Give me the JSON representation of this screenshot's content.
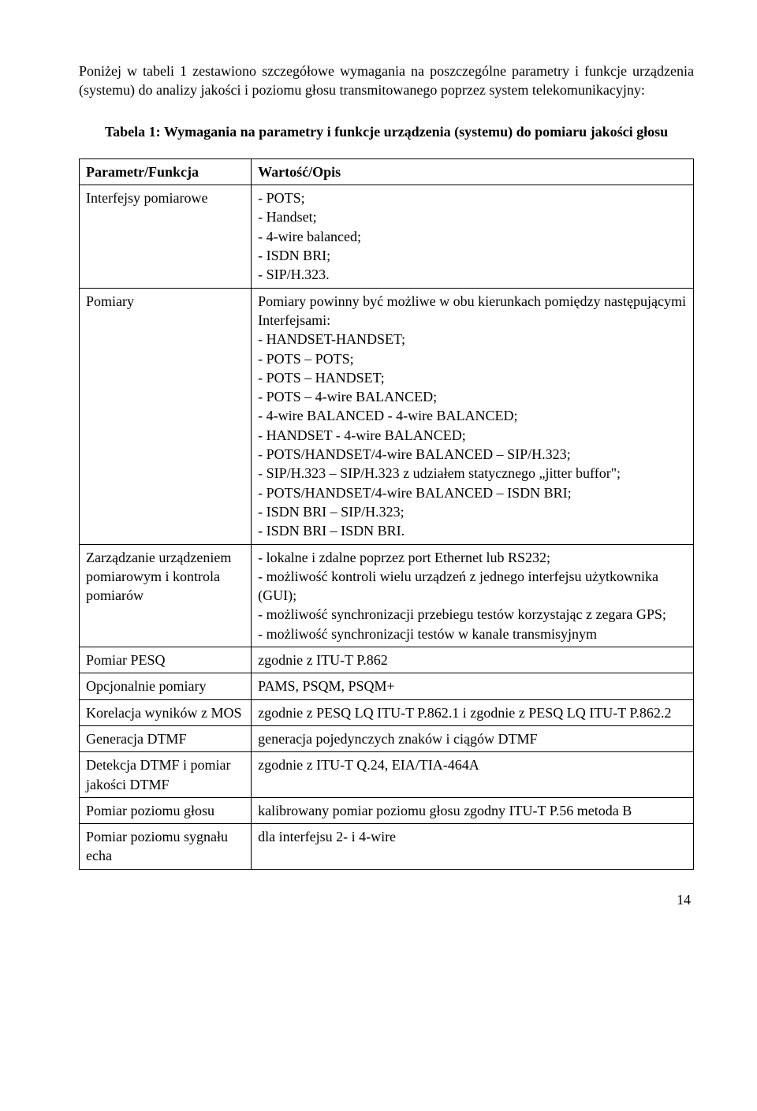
{
  "intro": "Poniżej w tabeli 1 zestawiono szczegółowe wymagania na poszczególne parametry i funkcje urządzenia (systemu) do analizy jakości i poziomu głosu transmitowanego poprzez system telekomunikacyjny:",
  "caption": "Tabela 1: Wymagania na parametry i funkcje urządzenia (systemu) do pomiaru jakości głosu",
  "header": {
    "param": "Parametr/Funkcja",
    "value": "Wartość/Opis"
  },
  "rows": {
    "r1": {
      "param": "Interfejsy pomiarowe",
      "value": "- POTS;\n- Handset;\n- 4-wire balanced;\n- ISDN BRI;\n- SIP/H.323."
    },
    "r2": {
      "param": "Pomiary",
      "value": "Pomiary powinny być możliwe w obu kierunkach pomiędzy następującymi Interfejsami:\n- HANDSET-HANDSET;\n- POTS – POTS;\n- POTS – HANDSET;\n- POTS – 4-wire BALANCED;\n- 4-wire BALANCED - 4-wire BALANCED;\n- HANDSET - 4-wire BALANCED;\n- POTS/HANDSET/4-wire BALANCED – SIP/H.323;\n- SIP/H.323 – SIP/H.323 z udziałem statycznego „jitter buffor\";\n- POTS/HANDSET/4-wire BALANCED – ISDN BRI;\n- ISDN BRI – SIP/H.323;\n- ISDN BRI – ISDN BRI."
    },
    "r3": {
      "param": "Zarządzanie urządzeniem pomiarowym i kontrola pomiarów",
      "value": "- lokalne i zdalne poprzez port Ethernet lub RS232;\n- możliwość kontroli wielu urządzeń z jednego interfejsu użytkownika (GUI);\n- możliwość synchronizacji przebiegu testów korzystając z zegara GPS;\n- możliwość synchronizacji testów w kanale transmisyjnym"
    },
    "r4": {
      "param": "Pomiar PESQ",
      "value": "zgodnie z ITU-T P.862"
    },
    "r5": {
      "param": "Opcjonalnie pomiary",
      "value": "PAMS, PSQM, PSQM+"
    },
    "r6": {
      "param": "Korelacja wyników z MOS",
      "value": "zgodnie z  PESQ LQ ITU-T P.862.1 i zgodnie z PESQ LQ ITU-T P.862.2"
    },
    "r7": {
      "param": "Generacja DTMF",
      "value": "generacja pojedynczych znaków i ciągów DTMF"
    },
    "r8": {
      "param": "Detekcja DTMF i pomiar jakości DTMF",
      "value": "zgodnie z ITU-T Q.24, EIA/TIA-464A"
    },
    "r9": {
      "param": "Pomiar poziomu głosu",
      "value": "kalibrowany pomiar poziomu głosu zgodny  ITU-T P.56 metoda B"
    },
    "r10": {
      "param": "Pomiar poziomu sygnału echa",
      "value": "dla interfejsu 2- i 4-wire"
    }
  },
  "pageNumber": "14"
}
